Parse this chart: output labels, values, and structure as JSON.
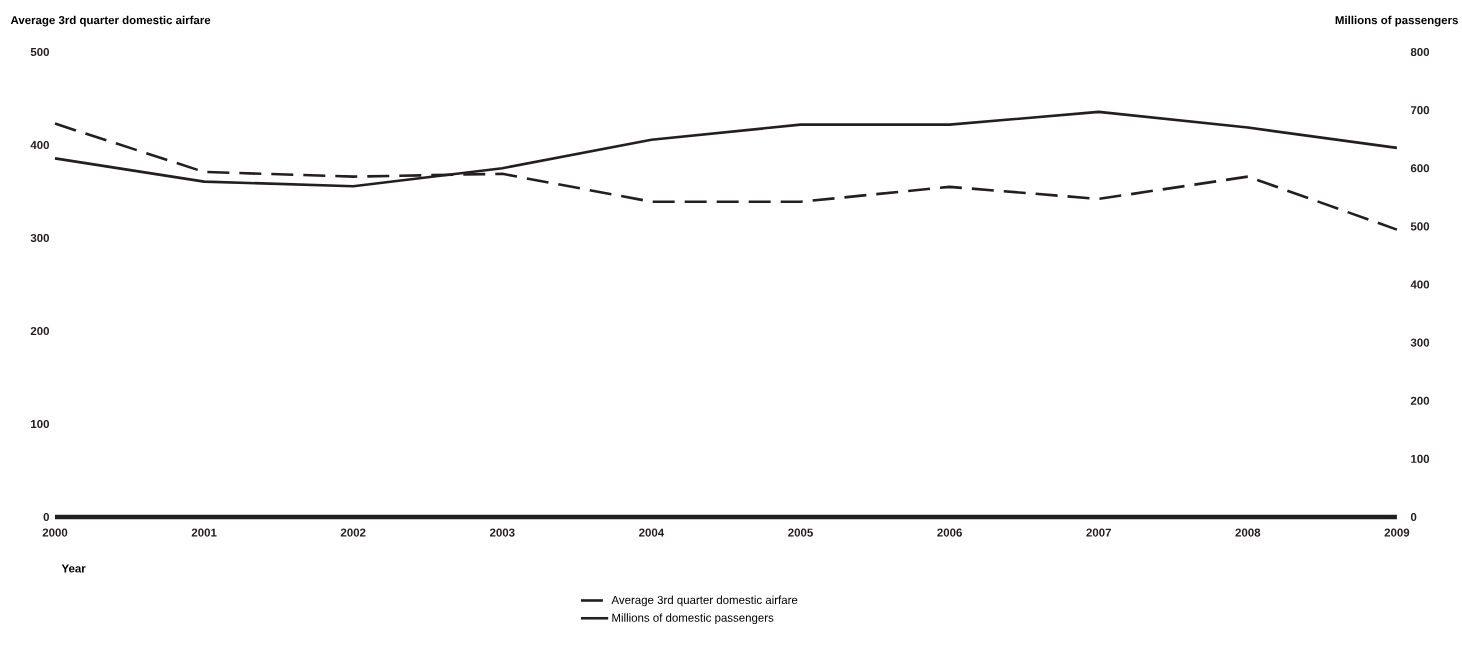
{
  "chart_data": {
    "type": "line",
    "xlabel": "Year",
    "ylabel": "Average 3rd quarter domestic airfare",
    "y2label": "Millions of passengers",
    "x": [
      2000,
      2001,
      2002,
      2003,
      2004,
      2005,
      2006,
      2007,
      2008,
      2009
    ],
    "xlim": [
      2000,
      2009
    ],
    "xticks": [
      2000,
      2001,
      2002,
      2003,
      2004,
      2005,
      2006,
      2007,
      2008,
      2009
    ],
    "ylim": [
      0,
      500
    ],
    "yticks": [
      0,
      100,
      200,
      300,
      400,
      500
    ],
    "y2lim": [
      0,
      800
    ],
    "y2ticks": [
      0,
      100,
      200,
      300,
      400,
      500,
      600,
      700,
      800
    ],
    "legend": "bottom",
    "marker": "none",
    "series": [
      {
        "name": "Average 3rd quarter domestic airfare",
        "color": "#231f20",
        "line_style": "dashed",
        "values": [
          423,
          371,
          366,
          369,
          339,
          339,
          355,
          342,
          366,
          309
        ]
      },
      {
        "name": "Millions of domestic passengers",
        "color": "#231f20",
        "line_style": "solid",
        "axis": "y2",
        "values": [
          617,
          577,
          569,
          600,
          649,
          675,
          675,
          697,
          670,
          635
        ]
      }
    ]
  }
}
